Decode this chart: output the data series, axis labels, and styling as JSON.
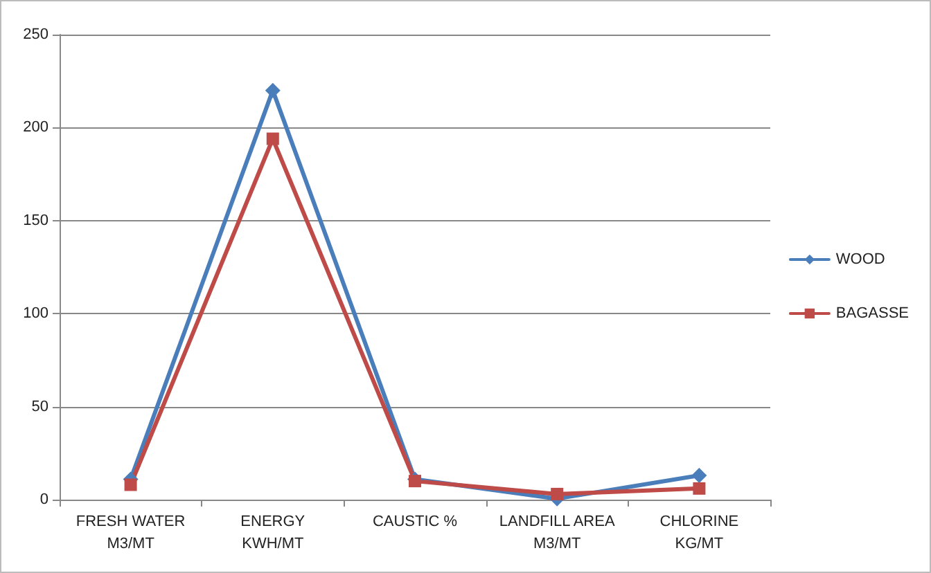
{
  "chart_data": {
    "type": "line",
    "categories": [
      "FRESH WATER\nM3/MT",
      "ENERGY\nKWH/MT",
      "CAUSTIC %",
      "LANDFILL AREA\nM3/MT",
      "CHLORINE\nKG/MT"
    ],
    "series": [
      {
        "name": "WOOD",
        "color": "#4a7ebb",
        "marker": "diamond",
        "values": [
          11,
          220,
          11,
          0.5,
          13
        ]
      },
      {
        "name": "BAGASSE",
        "color": "#be4b48",
        "marker": "square",
        "values": [
          8,
          194,
          10,
          3,
          6
        ]
      }
    ],
    "ylim": [
      0,
      250
    ],
    "yticks": [
      0,
      50,
      100,
      150,
      200,
      250
    ],
    "grid": "y",
    "legend": "right",
    "line_style": "solid"
  }
}
